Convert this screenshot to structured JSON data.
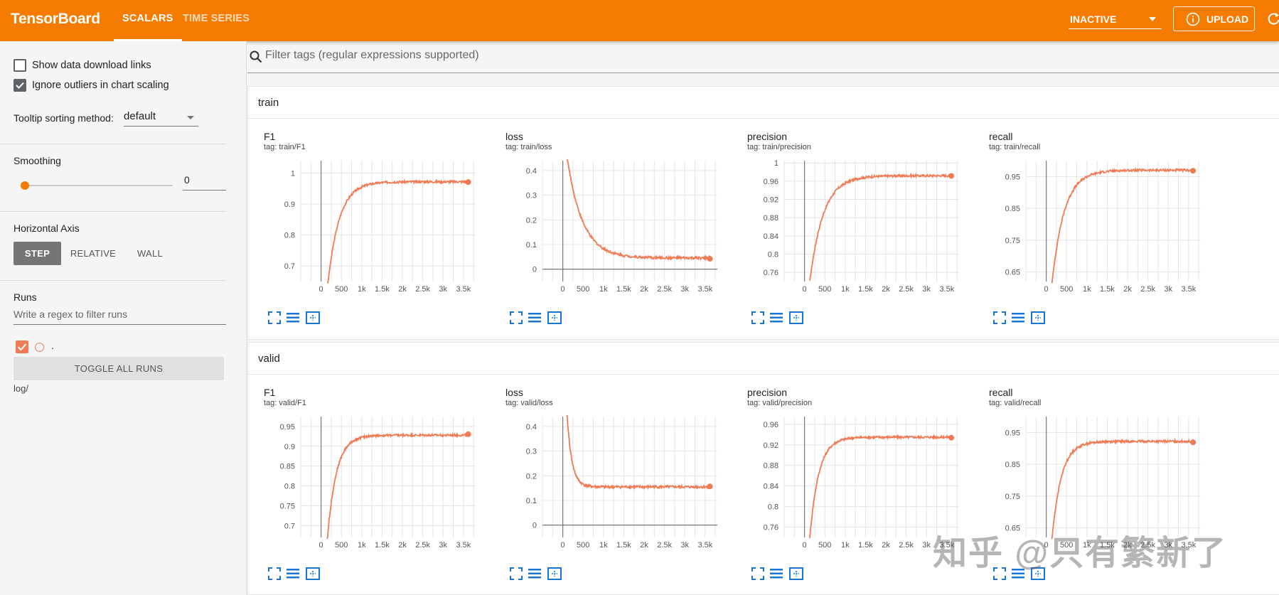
{
  "header": {
    "brand": "TensorBoard",
    "tabs": [
      {
        "label": "SCALARS",
        "active": true
      },
      {
        "label": "TIME SERIES",
        "active": false
      }
    ],
    "status_select": "INACTIVE",
    "upload_label": "UPLOAD",
    "accent_color": "#f57c00"
  },
  "sidebar": {
    "show_download_links": {
      "label": "Show data download links",
      "checked": false
    },
    "ignore_outliers": {
      "label": "Ignore outliers in chart scaling",
      "checked": true
    },
    "tooltip_label": "Tooltip sorting method:",
    "tooltip_value": "default",
    "smoothing_label": "Smoothing",
    "smoothing_value": "0",
    "horizontal_axis_label": "Horizontal Axis",
    "axis_options": [
      "STEP",
      "RELATIVE",
      "WALL"
    ],
    "axis_selected": "STEP",
    "runs_label": "Runs",
    "runs_filter_placeholder": "Write a regex to filter runs",
    "run_name": ".",
    "run_color": "#f07a54",
    "toggle_all_label": "TOGGLE ALL RUNS",
    "log_dir": "log/"
  },
  "main": {
    "filter_placeholder": "Filter tags (regular expressions supported)",
    "groups": [
      {
        "name": "train",
        "cards": [
          {
            "title": "F1",
            "tag": "tag: train/F1"
          },
          {
            "title": "loss",
            "tag": "tag: train/loss"
          },
          {
            "title": "precision",
            "tag": "tag: train/precision"
          },
          {
            "title": "recall",
            "tag": "tag: train/recall"
          }
        ]
      },
      {
        "name": "valid",
        "cards": [
          {
            "title": "F1",
            "tag": "tag: valid/F1"
          },
          {
            "title": "loss",
            "tag": "tag: valid/loss"
          },
          {
            "title": "precision",
            "tag": "tag: valid/precision"
          },
          {
            "title": "recall",
            "tag": "tag: valid/recall"
          }
        ]
      }
    ]
  },
  "watermark": "知乎 @只有繁新了",
  "chart_data": [
    {
      "id": "train-F1",
      "type": "line",
      "title": "F1",
      "x_ticks": [
        "0",
        "500",
        "1k",
        "1.5k",
        "2k",
        "2.5k",
        "3k",
        "3.5k"
      ],
      "xlim": [
        -500,
        3800
      ],
      "ylim": [
        0.65,
        1.04
      ],
      "y_ticks": [
        0.7,
        0.8,
        0.9,
        1
      ],
      "y_tick_labels": [
        "0.7",
        "0.8",
        "0.9",
        "1"
      ],
      "series": [
        {
          "color": "#f07a54",
          "kind": "rise",
          "start_x": 150,
          "start_y": 0.62,
          "plateau": 0.972,
          "knee": 280
        }
      ]
    },
    {
      "id": "train-loss",
      "type": "line",
      "title": "loss",
      "x_ticks": [
        "0",
        "500",
        "1k",
        "1.5k",
        "2k",
        "2.5k",
        "3k",
        "3.5k"
      ],
      "xlim": [
        -500,
        3800
      ],
      "ylim": [
        -0.05,
        0.44
      ],
      "y_ticks": [
        0,
        0.1,
        0.2,
        0.3,
        0.4
      ],
      "y_tick_labels": [
        "0",
        "0.1",
        "0.2",
        "0.3",
        "0.4"
      ],
      "series": [
        {
          "color": "#f07a54",
          "kind": "decay",
          "start_x": 100,
          "start_y": 0.46,
          "plateau": 0.045,
          "knee": 380
        }
      ]
    },
    {
      "id": "train-precision",
      "type": "line",
      "title": "precision",
      "x_ticks": [
        "0",
        "500",
        "1k",
        "1.5k",
        "2k",
        "2.5k",
        "3k",
        "3.5k"
      ],
      "xlim": [
        -500,
        3800
      ],
      "ylim": [
        0.74,
        1.005
      ],
      "y_ticks": [
        0.76,
        0.8,
        0.84,
        0.88,
        0.92,
        0.96,
        1
      ],
      "y_tick_labels": [
        "0.76",
        "0.8",
        "0.84",
        "0.88",
        "0.92",
        "0.96",
        "1"
      ],
      "series": [
        {
          "color": "#f07a54",
          "kind": "rise",
          "start_x": 130,
          "start_y": 0.74,
          "plateau": 0.972,
          "knee": 330
        }
      ]
    },
    {
      "id": "train-recall",
      "type": "line",
      "title": "recall",
      "x_ticks": [
        "0",
        "500",
        "1k",
        "1.5k",
        "2k",
        "2.5k",
        "3k",
        "3.5k"
      ],
      "xlim": [
        -500,
        3800
      ],
      "ylim": [
        0.62,
        1.0
      ],
      "y_ticks": [
        0.65,
        0.75,
        0.85,
        0.95
      ],
      "y_tick_labels": [
        "0.65",
        "0.75",
        "0.85",
        "0.95"
      ],
      "series": [
        {
          "color": "#f07a54",
          "kind": "rise",
          "start_x": 130,
          "start_y": 0.6,
          "plateau": 0.97,
          "knee": 300
        }
      ]
    },
    {
      "id": "valid-F1",
      "type": "line",
      "title": "F1",
      "x_ticks": [
        "0",
        "500",
        "1k",
        "1.5k",
        "2k",
        "2.5k",
        "3k",
        "3.5k"
      ],
      "xlim": [
        -500,
        3800
      ],
      "ylim": [
        0.67,
        0.975
      ],
      "y_ticks": [
        0.7,
        0.75,
        0.8,
        0.85,
        0.9,
        0.95
      ],
      "y_tick_labels": [
        "0.7",
        "0.75",
        "0.8",
        "0.85",
        "0.9",
        "0.95"
      ],
      "series": [
        {
          "color": "#f07a54",
          "kind": "rise",
          "start_x": 150,
          "start_y": 0.66,
          "plateau": 0.928,
          "knee": 220
        }
      ]
    },
    {
      "id": "valid-loss",
      "type": "line",
      "title": "loss",
      "x_ticks": [
        "0",
        "500",
        "1k",
        "1.5k",
        "2k",
        "2.5k",
        "3k",
        "3.5k"
      ],
      "xlim": [
        -500,
        3800
      ],
      "ylim": [
        -0.05,
        0.44
      ],
      "y_ticks": [
        0,
        0.1,
        0.2,
        0.3,
        0.4
      ],
      "y_tick_labels": [
        "0",
        "0.1",
        "0.2",
        "0.3",
        "0.4"
      ],
      "series": [
        {
          "color": "#f07a54",
          "kind": "decay",
          "start_x": 100,
          "start_y": 0.46,
          "plateau": 0.155,
          "knee": 120
        }
      ]
    },
    {
      "id": "valid-precision",
      "type": "line",
      "title": "precision",
      "x_ticks": [
        "0",
        "500",
        "1k",
        "1.5k",
        "2k",
        "2.5k",
        "3k",
        "3.5k"
      ],
      "xlim": [
        -500,
        3800
      ],
      "ylim": [
        0.74,
        0.975
      ],
      "y_ticks": [
        0.76,
        0.8,
        0.84,
        0.88,
        0.92,
        0.96
      ],
      "y_tick_labels": [
        "0.76",
        "0.8",
        "0.84",
        "0.88",
        "0.92",
        "0.96"
      ],
      "series": [
        {
          "color": "#f07a54",
          "kind": "rise",
          "start_x": 130,
          "start_y": 0.74,
          "plateau": 0.935,
          "knee": 220
        }
      ]
    },
    {
      "id": "valid-recall",
      "type": "line",
      "title": "recall",
      "x_ticks": [
        "0",
        "500",
        "1k",
        "1.5k",
        "2k",
        "2.5k",
        "3k",
        "3.5k"
      ],
      "xlim": [
        -500,
        3800
      ],
      "ylim": [
        0.62,
        1.0
      ],
      "y_ticks": [
        0.65,
        0.75,
        0.85,
        0.95
      ],
      "y_tick_labels": [
        "0.65",
        "0.75",
        "0.85",
        "0.95"
      ],
      "series": [
        {
          "color": "#f07a54",
          "kind": "rise",
          "start_x": 130,
          "start_y": 0.6,
          "plateau": 0.922,
          "knee": 230
        }
      ]
    }
  ]
}
